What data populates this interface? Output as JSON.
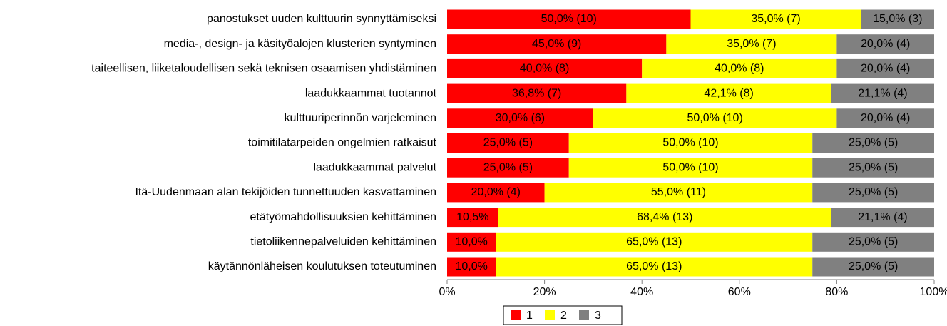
{
  "chart_data": {
    "type": "stacked_bar_horizontal",
    "categories": [
      "panostukset uuden kulttuurin synnyttämiseksi",
      "media-, design- ja käsityöalojen klusterien syntyminen",
      "taiteellisen, liiketaloudellisen sekä teknisen osaamisen yhdistäminen",
      "laadukkaammat tuotannot",
      "kulttuuriperinnön varjeleminen",
      "toimitilatarpeiden ongelmien ratkaisut",
      "laadukkaammat palvelut",
      "Itä-Uudenmaan alan tekijöiden tunnettuuden kasvattaminen",
      "etätyömahdollisuuksien kehittäminen",
      "tietoliikennepalveluiden kehittäminen",
      "käytännönläheisen koulutuksen toteutuminen"
    ],
    "series": [
      {
        "name": "1",
        "color": "#ff0000",
        "values": [
          50,
          45,
          40,
          36.8,
          30,
          25,
          25,
          20,
          10.5,
          10,
          10
        ],
        "value_labels": [
          "50,0% (10)",
          "45,0% (9)",
          "40,0% (8)",
          "36,8% (7)",
          "30,0% (6)",
          "25,0% (5)",
          "25,0% (5)",
          "20,0% (4)",
          "10,5%",
          "10,0%",
          "10,0%"
        ]
      },
      {
        "name": "2",
        "color": "#ffff00",
        "values": [
          35,
          35,
          40,
          42.1,
          50,
          50,
          50,
          55,
          68.4,
          65,
          65
        ],
        "value_labels": [
          "35,0% (7)",
          "35,0% (7)",
          "40,0% (8)",
          "42,1% (8)",
          "50,0% (10)",
          "50,0% (10)",
          "50,0% (10)",
          "55,0% (11)",
          "68,4% (13)",
          "65,0% (13)",
          "65,0% (13)"
        ]
      },
      {
        "name": "3",
        "color": "#808080",
        "values": [
          15,
          20,
          20,
          21.1,
          20,
          25,
          25,
          25,
          21.1,
          25,
          25
        ],
        "value_labels": [
          "15,0% (3)",
          "20,0% (4)",
          "20,0% (4)",
          "21,1% (4)",
          "20,0% (4)",
          "25,0% (5)",
          "25,0% (5)",
          "25,0% (5)",
          "21,1% (4)",
          "25,0% (5)",
          "25,0% (5)"
        ]
      }
    ],
    "xlim": [
      0,
      100
    ],
    "xticks": [
      {
        "value": 0,
        "label": "0%"
      },
      {
        "value": 20,
        "label": "20%"
      },
      {
        "value": 40,
        "label": "40%"
      },
      {
        "value": 60,
        "label": "60%"
      },
      {
        "value": 80,
        "label": "80%"
      },
      {
        "value": 100,
        "label": "100%"
      }
    ],
    "legend": "bottom"
  }
}
